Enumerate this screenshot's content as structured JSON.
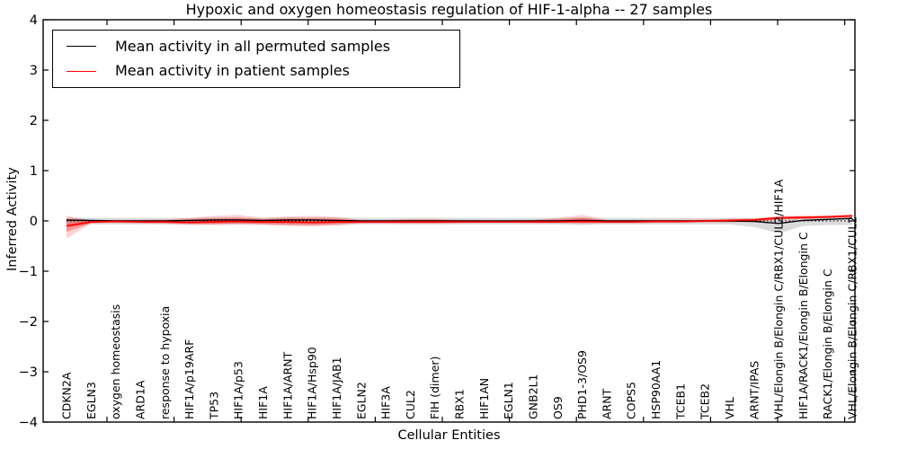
{
  "figure": {
    "kind": "matplotlib-line-plot"
  },
  "chart_data": {
    "type": "line",
    "title": "Hypoxic and oxygen homeostasis regulation of HIF-1-alpha -- 27 samples",
    "xlabel": "Cellular Entities",
    "ylabel": "Inferred Activity",
    "ylim": [
      -4,
      4
    ],
    "yticks": [
      4,
      3,
      2,
      1,
      0,
      -1,
      -2,
      -3,
      -4
    ],
    "grid": false,
    "legend_position": "upper left",
    "background_color": "#ffffff",
    "frame_color": "#000000",
    "categories": [
      "CDKN2A",
      "EGLN3",
      "oxygen homeostasis",
      "ARD1A",
      "response to hypoxia",
      "HIF1A/p19ARF",
      "TP53",
      "HIF1A/p53",
      "HIF1A",
      "HIF1A/ARNT",
      "HIF1A/Hsp90",
      "HIF1A/JAB1",
      "EGLN2",
      "HIF3A",
      "CUL2",
      "FIH (dimer)",
      "RBX1",
      "HIF1AN",
      "EGLN1",
      "GNB2L1",
      "OS9",
      "PHD1-3/OS9",
      "ARNT",
      "COPS5",
      "HSP90AA1",
      "TCEB1",
      "TCEB2",
      "VHL",
      "ARNT/IPAS",
      "VHL/Elongin B/Elongin C/RBX1/CUL2/HIF1A",
      "HIF1A/RACK1/Elongin B/Elongin C",
      "RACK1/Elongin B/Elongin C",
      "VHL/Elongin B/Elongin C/RBX1/CUL2"
    ],
    "series": [
      {
        "name": "Mean activity in all permuted samples",
        "color": "#000000",
        "style": "solid",
        "values": [
          0.02,
          0.01,
          0.0,
          0.0,
          0.0,
          0.01,
          0.02,
          0.02,
          0.01,
          0.02,
          0.02,
          0.01,
          0.0,
          0.0,
          0.0,
          0.0,
          0.0,
          0.0,
          0.0,
          0.0,
          0.0,
          0.01,
          0.0,
          0.0,
          0.0,
          0.0,
          0.0,
          0.0,
          -0.01,
          -0.05,
          0.01,
          0.03,
          0.05
        ]
      },
      {
        "name": "Mean activity in patient samples",
        "color": "#ff0000",
        "style": "solid",
        "values": [
          -0.1,
          -0.02,
          -0.01,
          -0.02,
          -0.02,
          -0.03,
          -0.02,
          -0.01,
          -0.02,
          -0.02,
          -0.03,
          -0.02,
          -0.02,
          -0.02,
          -0.02,
          -0.02,
          -0.02,
          -0.02,
          -0.02,
          -0.02,
          -0.02,
          -0.01,
          -0.02,
          -0.02,
          -0.01,
          -0.01,
          0.0,
          0.01,
          0.02,
          0.06,
          0.07,
          0.08,
          0.1
        ]
      }
    ],
    "reference_line": {
      "y": 0,
      "style": "dotted",
      "color": "#000000"
    },
    "bands": [
      {
        "name": "permuted-samples-band",
        "color": "#b0b0b0",
        "opacity": 0.45,
        "upper": [
          0.07,
          0.06,
          0.06,
          0.06,
          0.06,
          0.06,
          0.07,
          0.07,
          0.06,
          0.07,
          0.07,
          0.07,
          0.06,
          0.06,
          0.06,
          0.06,
          0.06,
          0.06,
          0.06,
          0.06,
          0.06,
          0.07,
          0.06,
          0.06,
          0.06,
          0.06,
          0.06,
          0.06,
          0.06,
          0.08,
          0.07,
          0.07,
          0.08
        ],
        "lower": [
          -0.12,
          -0.07,
          -0.07,
          -0.07,
          -0.07,
          -0.07,
          -0.07,
          -0.07,
          -0.07,
          -0.08,
          -0.08,
          -0.08,
          -0.07,
          -0.07,
          -0.07,
          -0.07,
          -0.07,
          -0.07,
          -0.07,
          -0.07,
          -0.07,
          -0.08,
          -0.07,
          -0.07,
          -0.07,
          -0.07,
          -0.07,
          -0.07,
          -0.12,
          -0.25,
          -0.1,
          -0.08,
          -0.08
        ]
      },
      {
        "name": "patient-samples-band-outer",
        "color": "#ff0000",
        "opacity": 0.18,
        "upper": [
          0.1,
          0.01,
          0.02,
          0.02,
          0.03,
          0.06,
          0.1,
          0.12,
          0.06,
          0.09,
          0.1,
          0.08,
          0.02,
          0.02,
          0.04,
          0.04,
          0.02,
          0.01,
          0.01,
          0.02,
          0.06,
          0.12,
          0.02,
          0.02,
          0.02,
          0.02,
          0.03,
          0.04,
          0.05,
          0.1,
          0.11,
          0.11,
          0.13
        ],
        "lower": [
          -0.35,
          -0.05,
          -0.04,
          -0.05,
          -0.06,
          -0.08,
          -0.08,
          -0.07,
          -0.08,
          -0.1,
          -0.11,
          -0.09,
          -0.05,
          -0.05,
          -0.06,
          -0.06,
          -0.05,
          -0.04,
          -0.04,
          -0.05,
          -0.05,
          -0.06,
          -0.05,
          -0.05,
          -0.04,
          -0.04,
          -0.03,
          -0.03,
          -0.02,
          0.02,
          0.03,
          0.05,
          0.07
        ]
      },
      {
        "name": "patient-samples-band-inner",
        "color": "#ff0000",
        "opacity": 0.3,
        "upper": [
          0.04,
          0.0,
          0.01,
          0.01,
          0.01,
          0.03,
          0.05,
          0.06,
          0.03,
          0.05,
          0.05,
          0.04,
          0.01,
          0.01,
          0.02,
          0.02,
          0.01,
          0.0,
          0.0,
          0.01,
          0.03,
          0.06,
          0.01,
          0.01,
          0.01,
          0.01,
          0.01,
          0.02,
          0.03,
          0.08,
          0.09,
          0.09,
          0.11
        ],
        "lower": [
          -0.22,
          -0.04,
          -0.03,
          -0.04,
          -0.04,
          -0.06,
          -0.06,
          -0.05,
          -0.06,
          -0.07,
          -0.08,
          -0.06,
          -0.04,
          -0.04,
          -0.04,
          -0.04,
          -0.03,
          -0.03,
          -0.03,
          -0.03,
          -0.03,
          -0.04,
          -0.03,
          -0.03,
          -0.03,
          -0.03,
          -0.02,
          -0.02,
          -0.01,
          0.03,
          0.04,
          0.06,
          0.08
        ]
      }
    ]
  }
}
